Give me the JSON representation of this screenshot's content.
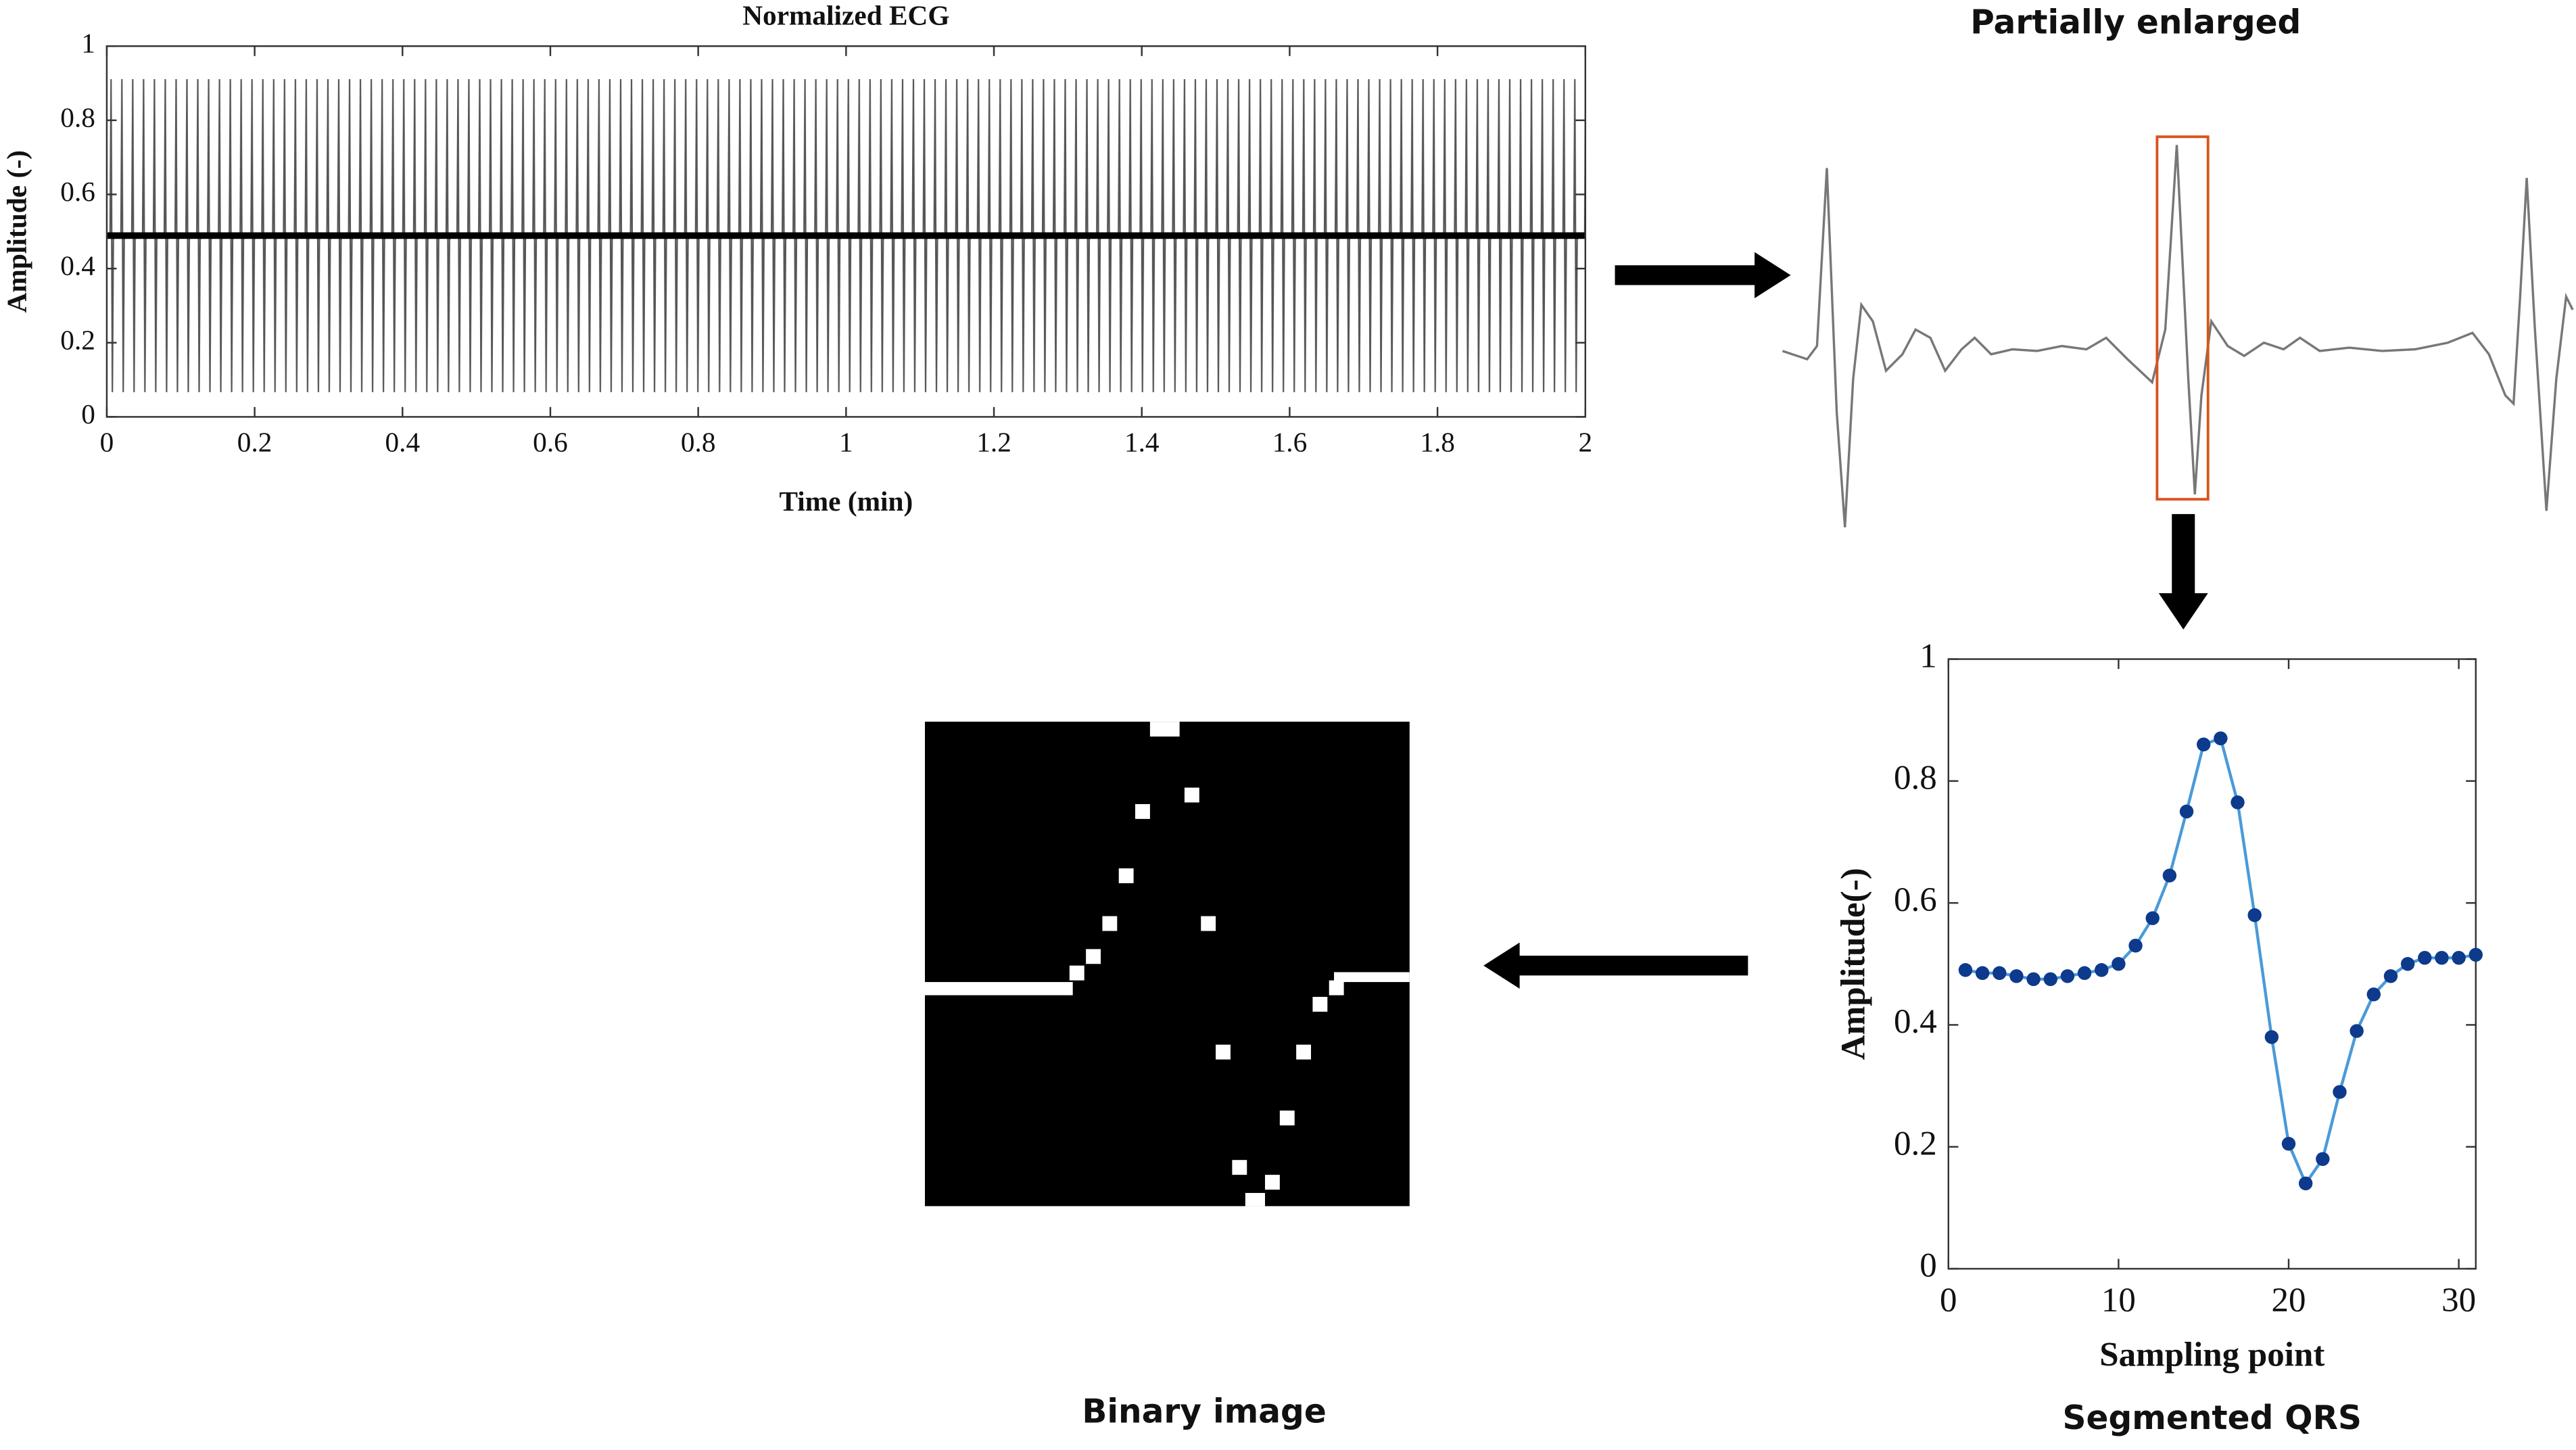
{
  "chart_data": [
    {
      "type": "line",
      "title": "Normalized ECG",
      "xlabel": "Time (min)",
      "ylabel": "Amplitude (-)",
      "xlim": [
        0,
        2
      ],
      "xticks": [
        0,
        0.2,
        0.4,
        0.6,
        0.8,
        1,
        1.2,
        1.4,
        1.6,
        1.8,
        2
      ],
      "ylim": [
        0,
        1
      ],
      "yticks": [
        0,
        0.2,
        0.4,
        0.6,
        0.8,
        1
      ]
    },
    {
      "type": "line",
      "title": "Segmented QRS",
      "xlabel": "Sampling point",
      "ylabel": "Amplitude(-)",
      "x": [
        1,
        2,
        3,
        4,
        5,
        6,
        7,
        8,
        9,
        10,
        11,
        12,
        13,
        14,
        15,
        16,
        17,
        18,
        19,
        20,
        21,
        22,
        23,
        24,
        25,
        26,
        27,
        28,
        29,
        30,
        31
      ],
      "series": [
        {
          "color": "#4a9ad8",
          "marker_color": "#0d3a8c",
          "values": [
            0.49,
            0.485,
            0.485,
            0.48,
            0.475,
            0.475,
            0.48,
            0.485,
            0.49,
            0.5,
            0.53,
            0.575,
            0.645,
            0.75,
            0.86,
            0.87,
            0.765,
            0.58,
            0.38,
            0.205,
            0.14,
            0.18,
            0.29,
            0.39,
            0.45,
            0.48,
            0.5,
            0.51,
            0.51,
            0.51,
            0.515
          ]
        }
      ],
      "xlim": [
        0,
        31
      ],
      "xticks": [
        0,
        10,
        20,
        30
      ],
      "ylim": [
        0,
        1
      ],
      "yticks": [
        0,
        0.2,
        0.4,
        0.6,
        0.8,
        1
      ]
    }
  ],
  "panels": {
    "enlarged_title": "Partially enlarged",
    "binary_title": "Binary image"
  }
}
